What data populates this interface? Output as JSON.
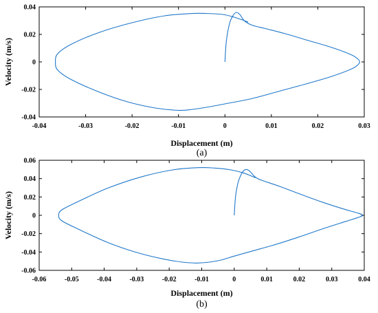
{
  "line_color": "#1f77c9",
  "chart_data": [
    {
      "type": "line",
      "caption": "(a)",
      "xlabel": "Displacement (m)",
      "ylabel": "Velocity (m/s)",
      "xlim": [
        -0.04,
        0.03
      ],
      "ylim": [
        -0.04,
        0.04
      ],
      "xticks": [
        -0.04,
        -0.03,
        -0.02,
        -0.01,
        0,
        0.01,
        0.02,
        0.03
      ],
      "xtick_labels": [
        "-0.04",
        "-0.03",
        "-0.02",
        "-0.01",
        "0",
        "0.01",
        "0.02",
        "0.03"
      ],
      "yticks": [
        -0.04,
        -0.02,
        0,
        0.02,
        0.04
      ],
      "ytick_labels": [
        "-0.04",
        "-0.02",
        "0",
        "0.02",
        "0.04"
      ],
      "grid": false,
      "series": [
        {
          "x": [
            0,
            0.0003,
            0.001,
            0.0018,
            0.0025,
            0.0032,
            0.0038,
            0.0045,
            0.006,
            0.009,
            0.013,
            0.018,
            0.023,
            0.027,
            0.0285,
            0.029,
            0.0285,
            0.027,
            0.023,
            0.018,
            0.012,
            0.006,
            0,
            -0.004,
            -0.007,
            -0.01,
            -0.015,
            -0.021,
            -0.027,
            -0.033,
            -0.036,
            -0.0365,
            -0.036,
            -0.033,
            -0.027,
            -0.02,
            -0.013,
            -0.007,
            -0.004,
            -0.0005,
            0.002,
            0.005
          ],
          "y": [
            0,
            0.015,
            0.028,
            0.034,
            0.036,
            0.0345,
            0.0315,
            0.029,
            0.0265,
            0.024,
            0.0205,
            0.0155,
            0.0105,
            0.0055,
            0.0025,
            0,
            -0.0025,
            -0.0055,
            -0.0105,
            -0.0155,
            -0.021,
            -0.0265,
            -0.0305,
            -0.033,
            -0.0345,
            -0.0352,
            -0.0335,
            -0.029,
            -0.022,
            -0.013,
            -0.006,
            0,
            0.006,
            0.013,
            0.0215,
            0.0285,
            0.0335,
            0.0352,
            0.0352,
            0.0345,
            0.0325,
            0.029
          ]
        }
      ]
    },
    {
      "type": "line",
      "caption": "(b)",
      "xlabel": "Displacement (m)",
      "ylabel": "Velocity (m/s)",
      "xlim": [
        -0.06,
        0.04
      ],
      "ylim": [
        -0.06,
        0.06
      ],
      "xticks": [
        -0.06,
        -0.05,
        -0.04,
        -0.03,
        -0.02,
        -0.01,
        0,
        0.01,
        0.02,
        0.03,
        0.04
      ],
      "xtick_labels": [
        "-0.06",
        "-0.05",
        "-0.04",
        "-0.03",
        "-0.02",
        "-0.01",
        "0",
        "0.01",
        "0.02",
        "0.03",
        "0.04"
      ],
      "yticks": [
        -0.06,
        -0.04,
        -0.02,
        0,
        0.02,
        0.04,
        0.06
      ],
      "ytick_labels": [
        "-0.06",
        "-0.04",
        "-0.02",
        "0",
        "0.02",
        "0.04",
        "0.06"
      ],
      "grid": false,
      "series": [
        {
          "x": [
            0,
            0.0004,
            0.0012,
            0.0022,
            0.0032,
            0.0042,
            0.0052,
            0.0062,
            0.0072,
            0.009,
            0.014,
            0.02,
            0.027,
            0.034,
            0.038,
            0.0395,
            0.038,
            0.034,
            0.027,
            0.02,
            0.013,
            0.006,
            0,
            -0.005,
            -0.011,
            -0.016,
            -0.022,
            -0.03,
            -0.039,
            -0.048,
            -0.053,
            -0.054,
            -0.053,
            -0.048,
            -0.039,
            -0.029,
            -0.019,
            -0.011,
            -0.006,
            -0.001,
            0.003,
            0.0065
          ],
          "y": [
            0,
            0.02,
            0.036,
            0.045,
            0.0495,
            0.0495,
            0.0465,
            0.0425,
            0.04,
            0.0375,
            0.0315,
            0.0235,
            0.0145,
            0.0065,
            0.0025,
            0,
            -0.0025,
            -0.007,
            -0.015,
            -0.0235,
            -0.0315,
            -0.0385,
            -0.0445,
            -0.0495,
            -0.052,
            -0.051,
            -0.0475,
            -0.0405,
            -0.0295,
            -0.015,
            -0.006,
            0,
            0.006,
            0.015,
            0.0295,
            0.0415,
            0.0495,
            0.052,
            0.0515,
            0.0495,
            0.046,
            0.041
          ]
        }
      ]
    }
  ]
}
